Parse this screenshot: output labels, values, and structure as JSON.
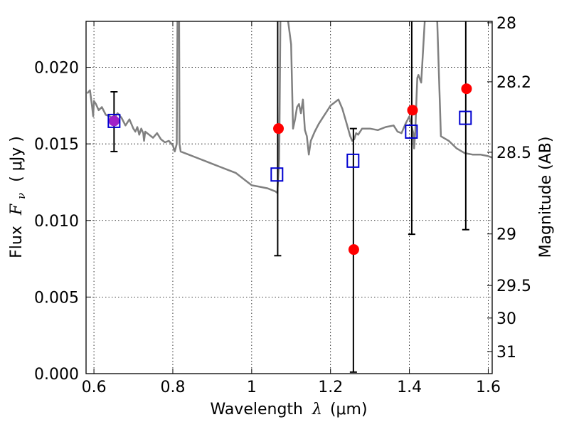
{
  "chart_data": {
    "type": "scatter",
    "xlabel_prefix": "Wavelength",
    "xlabel_symbol": "λ",
    "xlabel_unit": "(μm)",
    "ylabel_prefix": "Flux",
    "ylabel_symbol": "F",
    "ylabel_subscript": "ν",
    "ylabel_unit": "( μJy )",
    "y2label": "Magnitude (AB)",
    "xlim": [
      0.58,
      1.61
    ],
    "ylim": [
      0.0,
      0.023
    ],
    "x_ticks": [
      0.6,
      0.8,
      1.0,
      1.2,
      1.4,
      1.6
    ],
    "x_tick_labels": [
      "0.6",
      "0.8",
      "1",
      "1.2",
      "1.4",
      "1.6"
    ],
    "y_ticks": [
      0.0,
      0.005,
      0.01,
      0.015,
      0.02
    ],
    "y_tick_labels": [
      "0.000",
      "0.005",
      "0.010",
      "0.015",
      "0.020"
    ],
    "y2_ticks": [
      28,
      28.2,
      28.5,
      29,
      29.5,
      30,
      31
    ],
    "y2_tick_labels": [
      "28",
      "28.2",
      "28.5",
      "29",
      "29.5",
      "30",
      "31"
    ],
    "grid": true,
    "series": [
      {
        "kind": "line",
        "color": "#808080",
        "x": [
          0.583,
          0.59,
          0.595,
          0.598,
          0.6,
          0.605,
          0.612,
          0.62,
          0.63,
          0.64,
          0.65,
          0.66,
          0.67,
          0.68,
          0.69,
          0.7,
          0.705,
          0.71,
          0.715,
          0.72,
          0.725,
          0.727,
          0.73,
          0.74,
          0.75,
          0.76,
          0.77,
          0.78,
          0.79,
          0.8,
          0.805,
          0.81,
          0.812,
          0.813,
          0.816,
          0.817,
          0.82,
          0.84,
          0.86,
          0.88,
          0.9,
          0.92,
          0.94,
          0.96,
          0.98,
          1.0,
          1.02,
          1.04,
          1.06,
          1.065,
          1.07,
          1.073,
          1.078,
          1.083,
          1.09,
          1.1,
          1.105,
          1.11,
          1.115,
          1.12,
          1.125,
          1.13,
          1.135,
          1.14,
          1.145,
          1.15,
          1.16,
          1.17,
          1.18,
          1.19,
          1.2,
          1.21,
          1.22,
          1.23,
          1.24,
          1.25,
          1.255,
          1.26,
          1.265,
          1.27,
          1.28,
          1.3,
          1.32,
          1.34,
          1.36,
          1.37,
          1.38,
          1.39,
          1.4,
          1.405,
          1.41,
          1.412,
          1.415,
          1.418,
          1.42,
          1.423,
          1.43,
          1.44,
          1.45,
          1.455,
          1.46,
          1.47,
          1.48,
          1.5,
          1.52,
          1.54,
          1.56,
          1.58,
          1.6,
          1.61
        ],
        "y": [
          0.0183,
          0.0185,
          0.0175,
          0.0168,
          0.0178,
          0.0176,
          0.0172,
          0.0174,
          0.0169,
          0.0168,
          0.0166,
          0.017,
          0.0167,
          0.0162,
          0.0166,
          0.016,
          0.0158,
          0.0161,
          0.0156,
          0.016,
          0.0157,
          0.0152,
          0.0158,
          0.0156,
          0.0154,
          0.0157,
          0.0153,
          0.0151,
          0.0152,
          0.0149,
          0.0145,
          0.015,
          0.0235,
          0.0235,
          0.0235,
          0.015,
          0.0145,
          0.0143,
          0.0141,
          0.0139,
          0.0137,
          0.0135,
          0.0133,
          0.0131,
          0.0127,
          0.0123,
          0.0122,
          0.0121,
          0.0119,
          0.0118,
          0.014,
          0.0235,
          0.0235,
          0.0235,
          0.0235,
          0.0215,
          0.016,
          0.0166,
          0.0174,
          0.0176,
          0.017,
          0.0179,
          0.0159,
          0.0155,
          0.0143,
          0.0152,
          0.0158,
          0.0163,
          0.0167,
          0.0171,
          0.0175,
          0.0177,
          0.0179,
          0.0173,
          0.0164,
          0.0155,
          0.0152,
          0.0153,
          0.0157,
          0.0156,
          0.016,
          0.016,
          0.0159,
          0.0161,
          0.0162,
          0.0158,
          0.0157,
          0.0163,
          0.0168,
          0.0162,
          0.0157,
          0.0147,
          0.0158,
          0.018,
          0.0193,
          0.0195,
          0.019,
          0.0235,
          0.0235,
          0.0235,
          0.0235,
          0.0235,
          0.0155,
          0.0152,
          0.0147,
          0.0144,
          0.0143,
          0.0143,
          0.0142,
          0.0141
        ]
      },
      {
        "kind": "filled-circles",
        "color": "#ff0000",
        "x": [
          1.068,
          1.259,
          1.408,
          1.545
        ],
        "y": [
          0.016,
          0.0081,
          0.0172,
          0.0186
        ]
      },
      {
        "kind": "filled-circles",
        "color": "#a020c8",
        "x": [
          0.651
        ],
        "y": [
          0.0165
        ]
      },
      {
        "kind": "open-squares",
        "color": "#0000d0",
        "x": [
          0.651,
          1.064,
          1.257,
          1.405,
          1.542
        ],
        "y": [
          0.0165,
          0.013,
          0.0139,
          0.0158,
          0.0167
        ]
      },
      {
        "kind": "errorbars",
        "color": "#000000",
        "x": [
          0.651,
          1.066,
          1.258,
          1.406,
          1.543
        ],
        "y_low": [
          0.0145,
          0.0077,
          0.0001,
          0.0091,
          0.0094
        ],
        "y_high": [
          0.0184,
          0.0235,
          0.016,
          0.0235,
          0.0235
        ]
      }
    ]
  }
}
